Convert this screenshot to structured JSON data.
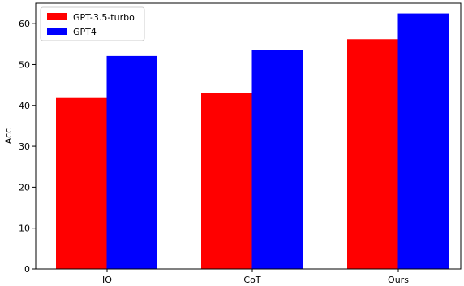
{
  "chart_data": {
    "type": "bar",
    "categories": [
      "IO",
      "CoT",
      "Ours"
    ],
    "series": [
      {
        "name": "GPT-3.5-turbo",
        "color": "#ff0000",
        "values": [
          42,
          43,
          56.2
        ]
      },
      {
        "name": "GPT4",
        "color": "#0000ff",
        "values": [
          52.1,
          53.6,
          62.5
        ]
      }
    ],
    "ylabel": "Acc",
    "ylim": [
      0,
      65
    ],
    "yticks": [
      0,
      10,
      20,
      30,
      40,
      50,
      60
    ],
    "grid": false,
    "legend_position": "top-left"
  }
}
